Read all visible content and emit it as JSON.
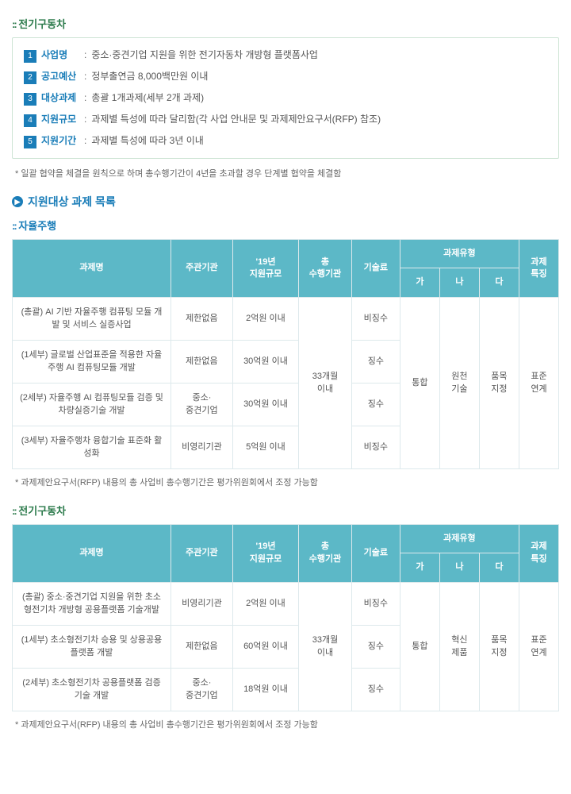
{
  "section_ev": {
    "title": "전기구동차",
    "rows": [
      {
        "num": "1",
        "label": "사업명",
        "value": "중소·중견기업 지원을 위한 전기자동차 개방형 플랫폼사업"
      },
      {
        "num": "2",
        "label": "공고예산",
        "value": "정부출연금 8,000백만원 이내"
      },
      {
        "num": "3",
        "label": "대상과제",
        "value": "총괄 1개과제(세부 2개 과제)"
      },
      {
        "num": "4",
        "label": "지원규모",
        "value": "과제별 특성에 따라 달리함(각 사업 안내문 및 과제제안요구서(RFP) 참조)"
      },
      {
        "num": "5",
        "label": "지원기간",
        "value": "과제별 특성에 따라 3년 이내"
      }
    ],
    "footnote": "* 일괄 협약을 체결을 원칙으로 하며 총수행기간이 4년을 초과할 경우 단계별 협약을 체결함"
  },
  "main_heading": "지원대상 과제 목록",
  "tables": {
    "headers": {
      "name": "과제명",
      "org": "주관기관",
      "scale": "'19년\n지원규모",
      "period": "총\n수행기관",
      "fee": "기술료",
      "type": "과제유형",
      "ga": "가",
      "na": "나",
      "da": "다",
      "feature": "과제\n특징"
    },
    "autonomous": {
      "title": "자율주행",
      "period": "33개월\n이내",
      "ga": "통합",
      "na": "원천\n기술",
      "da": "품목\n지정",
      "feature": "표준\n연계",
      "rows": [
        {
          "name": "(총괄) AI 기반 자율주행 컴퓨팅 모듈 개발 및 서비스 실증사업",
          "org": "제한없음",
          "scale": "2억원 이내",
          "fee": "비징수"
        },
        {
          "name": "(1세부) 글로벌 산업표준을 적용한 자율주행 AI 컴퓨팅모듈 개발",
          "org": "제한없음",
          "scale": "30억원 이내",
          "fee": "징수"
        },
        {
          "name": "(2세부) 자율주행 AI 컴퓨팅모듈 검증 및 차량실증기술 개발",
          "org": "중소·\n중견기업",
          "scale": "30억원 이내",
          "fee": "징수"
        },
        {
          "name": "(3세부) 자율주행차 융합기술 표준화 활성화",
          "org": "비영리기관",
          "scale": "5억원 이내",
          "fee": "비징수"
        }
      ],
      "footnote": "* 과제제안요구서(RFP) 내용의 총 사업비 총수행기간은 평가위원회에서 조정 가능함"
    },
    "ev2": {
      "title": "전기구동차",
      "period": "33개월\n이내",
      "ga": "통합",
      "na": "혁신\n제품",
      "da": "품목\n지정",
      "feature": "표준\n연계",
      "rows": [
        {
          "name": "(총괄) 중소·중견기업 지원을 위한 초소형전기차 개방형 공용플랫폼 기술개발",
          "org": "비영리기관",
          "scale": "2억원 이내",
          "fee": "비징수"
        },
        {
          "name": "(1세부) 초소형전기차 승용 및 상용공용플랫폼 개발",
          "org": "제한없음",
          "scale": "60억원 이내",
          "fee": "징수"
        },
        {
          "name": "(2세부) 초소형전기차 공용플랫폼 검증기술 개발",
          "org": "중소·\n중견기업",
          "scale": "18억원 이내",
          "fee": "징수"
        }
      ],
      "footnote": "* 과제제안요구서(RFP) 내용의 총 사업비 총수행기간은 평가위원회에서 조정 가능함"
    }
  },
  "style": {
    "accent_green": "#2b7a4b",
    "accent_blue": "#1a7db8",
    "th_bg": "#5cb8c7",
    "border": "#dde9ec",
    "text": "#555",
    "box_border": "#cde4d4"
  }
}
